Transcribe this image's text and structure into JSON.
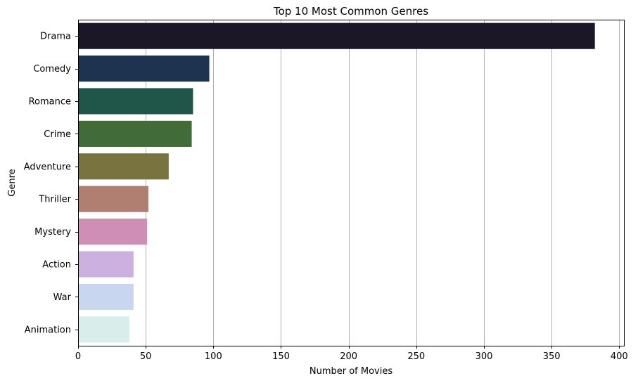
{
  "chart_data": {
    "type": "bar",
    "orientation": "horizontal",
    "title": "Top 10 Most Common Genres",
    "xlabel": "Number of Movies",
    "ylabel": "Genre",
    "categories": [
      "Drama",
      "Comedy",
      "Romance",
      "Crime",
      "Adventure",
      "Thriller",
      "Mystery",
      "Action",
      "War",
      "Animation"
    ],
    "values": [
      382,
      97,
      85,
      84,
      67,
      52,
      51,
      41,
      41,
      38
    ],
    "colors": [
      "#1b1727",
      "#1e3350",
      "#20564a",
      "#416b38",
      "#79733f",
      "#b17e72",
      "#cf8eb6",
      "#cbb0e0",
      "#c9d6f0",
      "#d9eeea"
    ],
    "xlim": [
      0,
      404
    ],
    "xticks": [
      0,
      50,
      100,
      150,
      200,
      250,
      300,
      350,
      400
    ],
    "grid": "x-only",
    "legend": "none"
  }
}
